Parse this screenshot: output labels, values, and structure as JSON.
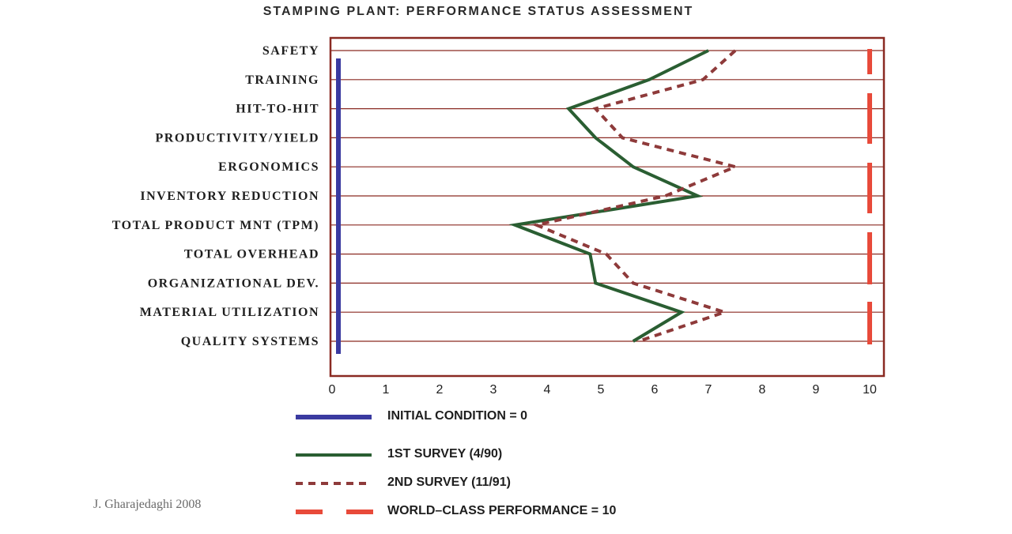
{
  "chart_data": {
    "type": "line",
    "title": "STAMPING PLANT:  PERFORMANCE STATUS ASSESSMENT",
    "categories": [
      "SAFETY",
      "TRAINING",
      "HIT-TO-HIT",
      "PRODUCTIVITY/YIELD",
      "ERGONOMICS",
      "INVENTORY REDUCTION",
      "TOTAL  PRODUCT  MNT (TPM)",
      "TOTAL OVERHEAD",
      "ORGANIZATIONAL DEV.",
      "MATERIAL UTILIZATION",
      "QUALITY SYSTEMS"
    ],
    "x_ticks": [
      0,
      1,
      2,
      3,
      4,
      5,
      6,
      7,
      8,
      9,
      10
    ],
    "xlim": [
      0,
      10
    ],
    "orientation": "horizontal-profile",
    "series": [
      {
        "name": "INITIAL CONDITION = 0",
        "style": "solid-thick",
        "color": "#3a3aa0",
        "values": [
          0,
          0,
          0,
          0,
          0,
          0,
          0,
          0,
          0,
          0,
          0
        ]
      },
      {
        "name": "1ST SURVEY (4/90)",
        "style": "solid",
        "color": "#2a5e32",
        "values": [
          7.0,
          5.9,
          4.4,
          4.9,
          5.6,
          6.8,
          3.4,
          4.8,
          4.9,
          6.5,
          5.6
        ]
      },
      {
        "name": "2ND SURVEY (11/91)",
        "style": "dashed",
        "color": "#8e3a3a",
        "values": [
          7.5,
          6.9,
          4.9,
          5.4,
          7.5,
          6.2,
          3.8,
          5.1,
          5.6,
          7.3,
          5.7
        ]
      },
      {
        "name": "WORLD–CLASS PERFORMANCE = 10",
        "style": "dashed-thick",
        "color": "#e84a3a",
        "values": [
          10,
          10,
          10,
          10,
          10,
          10,
          10,
          10,
          10,
          10,
          10
        ]
      }
    ],
    "grid": "horizontal category lines",
    "legend_position": "bottom"
  },
  "credit": "J. Gharajedaghi  2008"
}
